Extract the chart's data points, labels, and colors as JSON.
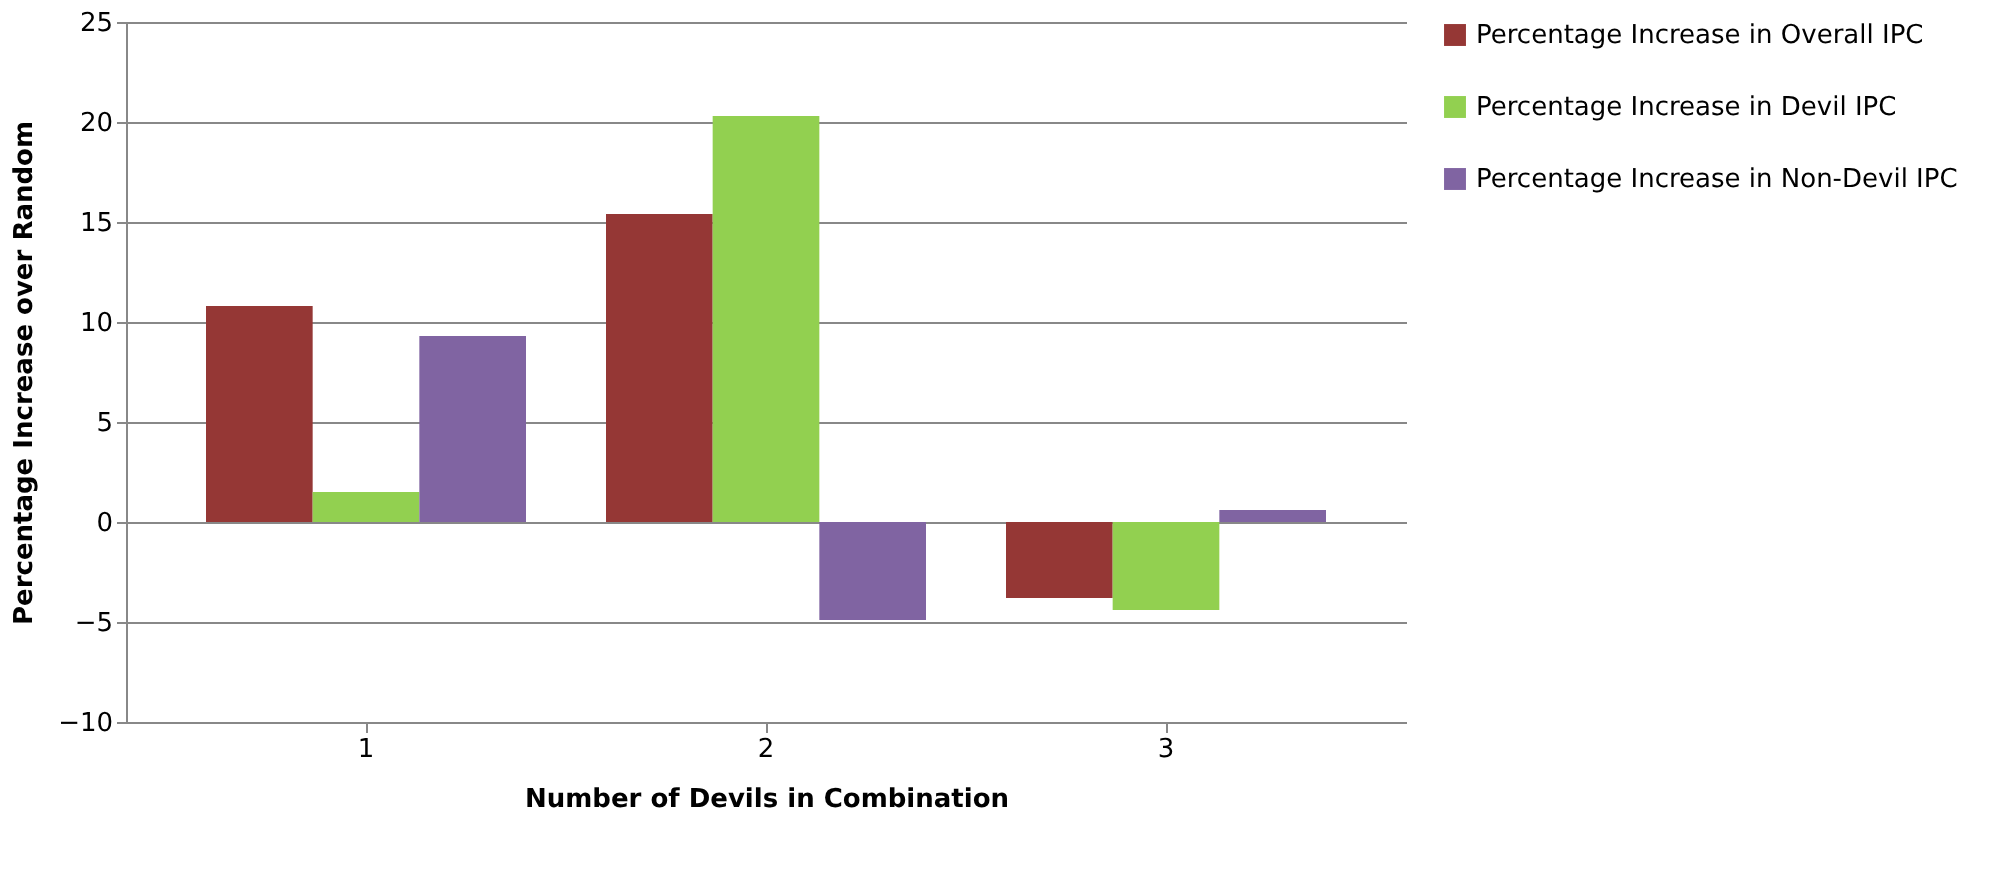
{
  "chart_data": {
    "type": "bar",
    "xlabel": "Number of Devils in Combination",
    "ylabel": "Percentage Increase over Random",
    "categories": [
      "1",
      "2",
      "3"
    ],
    "series": [
      {
        "name": "Percentage Increase in Overall IPC",
        "color": "#953735",
        "values": [
          10.8,
          15.4,
          -3.8
        ]
      },
      {
        "name": "Percentage Increase in Devil IPC",
        "color": "#92d050",
        "values": [
          1.5,
          20.3,
          -4.4
        ]
      },
      {
        "name": "Percentage Increase in Non-Devil IPC",
        "color": "#8064a2",
        "values": [
          9.3,
          -4.9,
          0.6
        ]
      }
    ],
    "ylim": [
      -10,
      25
    ],
    "yticks": [
      -10,
      -5,
      0,
      5,
      10,
      15,
      20,
      25
    ],
    "grid": "y",
    "legend": "right"
  }
}
